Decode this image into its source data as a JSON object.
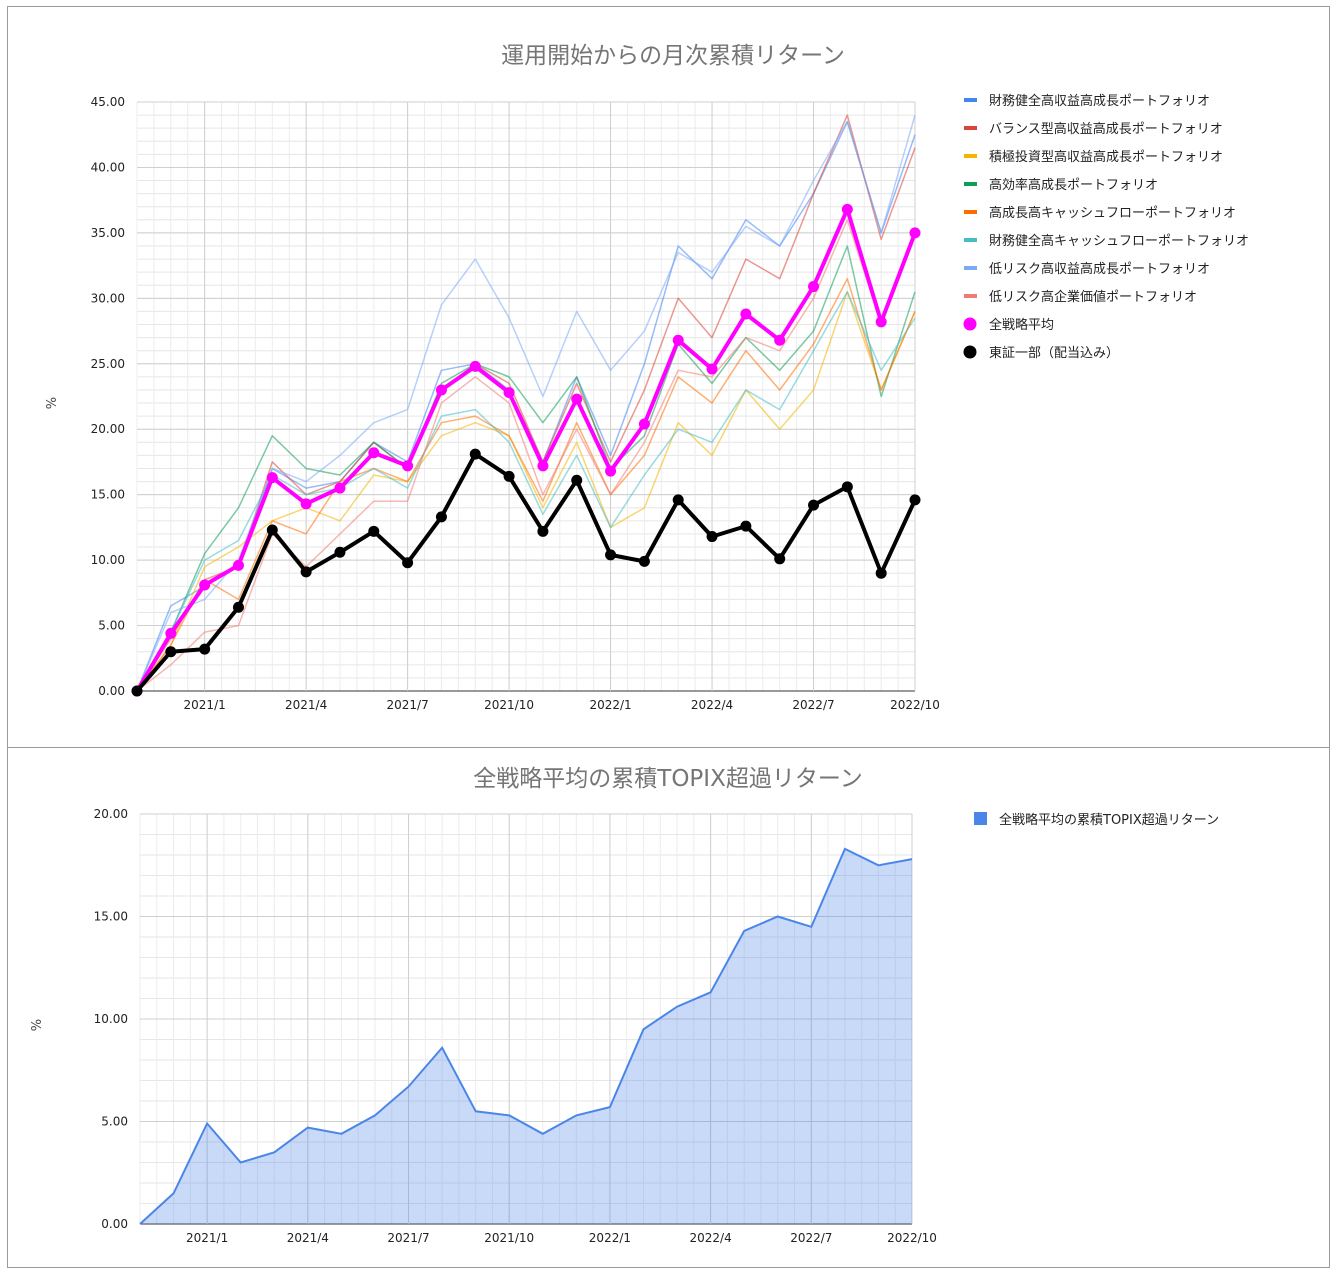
{
  "chart_data": [
    {
      "type": "line",
      "title": "運用開始からの月次累積リターン",
      "ylabel": "%",
      "ylim": [
        0,
        45
      ],
      "yticks": [
        "0.00",
        "5.00",
        "10.00",
        "15.00",
        "20.00",
        "25.00",
        "30.00",
        "35.00",
        "40.00",
        "45.00"
      ],
      "xtick_labels": [
        "2021/1",
        "2021/4",
        "2021/7",
        "2021/10",
        "2022/1",
        "2022/4",
        "2022/7",
        "2022/10"
      ],
      "x": [
        "2020/11",
        "2020/12",
        "2021/1",
        "2021/2",
        "2021/3",
        "2021/4",
        "2021/5",
        "2021/6",
        "2021/7",
        "2021/8",
        "2021/9",
        "2021/10",
        "2021/11",
        "2021/12",
        "2022/1",
        "2022/2",
        "2022/3",
        "2022/4",
        "2022/5",
        "2022/6",
        "2022/7",
        "2022/8",
        "2022/9",
        "2022/10"
      ],
      "grid": true,
      "legend_position": "right",
      "series": [
        {
          "name": "財務健全高収益高成長ポートフォリオ",
          "color": "#4285f4",
          "values": [
            0,
            6.5,
            8.0,
            9.5,
            17.0,
            15.5,
            16.0,
            19.0,
            17.5,
            24.5,
            25.0,
            23.0,
            17.5,
            24.0,
            18.0,
            25.0,
            34.0,
            31.5,
            36.0,
            34.0,
            38.0,
            43.5,
            35.0,
            42.5
          ]
        },
        {
          "name": "バランス型高収益高成長ポートフォリオ",
          "color": "#db4437",
          "values": [
            0,
            4.0,
            8.5,
            9.5,
            17.5,
            15.0,
            16.0,
            19.0,
            17.0,
            23.0,
            25.0,
            23.5,
            17.5,
            23.5,
            17.5,
            23.0,
            30.0,
            27.0,
            33.0,
            31.5,
            38.0,
            44.0,
            34.5,
            41.5
          ]
        },
        {
          "name": "積極投資型高収益高成長ポートフォリオ",
          "color": "#f4b400",
          "values": [
            0,
            3.5,
            9.5,
            11.0,
            13.0,
            14.0,
            13.0,
            16.5,
            16.0,
            19.5,
            20.5,
            19.5,
            14.0,
            19.0,
            12.5,
            14.0,
            20.5,
            18.0,
            23.0,
            20.0,
            23.0,
            30.5,
            23.0,
            29.0
          ]
        },
        {
          "name": "高効率高成長ポートフォリオ",
          "color": "#0f9d58",
          "values": [
            0,
            4.5,
            10.5,
            14.0,
            19.5,
            17.0,
            16.5,
            19.0,
            17.0,
            23.5,
            25.0,
            24.0,
            20.5,
            24.0,
            17.0,
            19.5,
            26.5,
            23.5,
            27.0,
            24.5,
            27.5,
            34.0,
            22.5,
            30.5
          ]
        },
        {
          "name": "高成長高キャッシュフローポートフォリオ",
          "color": "#ff6d01",
          "values": [
            0,
            3.5,
            8.5,
            7.0,
            13.0,
            12.0,
            16.0,
            17.0,
            16.0,
            20.5,
            21.0,
            19.5,
            14.5,
            20.5,
            15.0,
            18.0,
            24.0,
            22.0,
            26.0,
            23.0,
            26.5,
            31.5,
            23.0,
            29.0
          ]
        },
        {
          "name": "財務健全高キャッシュフローポートフォリオ",
          "color": "#46bdc6",
          "values": [
            0,
            4.5,
            10.0,
            11.5,
            16.5,
            15.0,
            15.5,
            17.0,
            15.5,
            21.0,
            21.5,
            19.0,
            13.5,
            18.0,
            12.5,
            16.5,
            20.0,
            19.0,
            23.0,
            21.5,
            26.0,
            30.5,
            24.5,
            28.5
          ]
        },
        {
          "name": "低リスク高収益高成長ポートフォリオ",
          "color": "#7baaf7",
          "values": [
            0,
            6.0,
            7.0,
            10.0,
            17.0,
            16.0,
            18.0,
            20.5,
            21.5,
            29.5,
            33.0,
            28.5,
            22.5,
            29.0,
            24.5,
            27.5,
            33.5,
            32.0,
            35.5,
            34.0,
            39.0,
            43.5,
            35.0,
            44.0
          ]
        },
        {
          "name": "低リスク高企業価値ポートフォリオ",
          "color": "#f07b72",
          "values": [
            0,
            2.0,
            4.5,
            5.0,
            12.0,
            9.5,
            12.0,
            14.5,
            14.5,
            22.0,
            24.0,
            22.0,
            15.0,
            20.0,
            15.0,
            19.0,
            24.5,
            24.0,
            27.0,
            26.0,
            30.0,
            36.0,
            28.0,
            35.0
          ]
        },
        {
          "name": "全戦略平均",
          "color": "#ff00ff",
          "values": [
            0,
            4.4,
            8.1,
            9.6,
            16.3,
            14.3,
            15.5,
            18.2,
            17.2,
            23.0,
            24.8,
            22.8,
            17.2,
            22.3,
            16.8,
            20.4,
            26.8,
            24.6,
            28.8,
            26.8,
            30.9,
            36.8,
            28.2,
            35.0
          ]
        },
        {
          "name": "東証一部（配当込み）",
          "color": "#000000",
          "values": [
            0,
            3.0,
            3.2,
            6.4,
            12.3,
            9.1,
            10.6,
            12.2,
            9.8,
            13.3,
            18.1,
            16.4,
            12.2,
            16.1,
            10.4,
            9.9,
            14.6,
            11.8,
            12.6,
            10.1,
            14.2,
            15.6,
            9.0,
            14.6
          ]
        }
      ]
    },
    {
      "type": "area",
      "title": "全戦略平均の累積TOPIX超過リターン",
      "ylabel": "%",
      "ylim": [
        0,
        20
      ],
      "yticks": [
        "0.00",
        "5.00",
        "10.00",
        "15.00",
        "20.00"
      ],
      "xtick_labels": [
        "2021/1",
        "2021/4",
        "2021/7",
        "2021/10",
        "2022/1",
        "2022/4",
        "2022/7",
        "2022/10"
      ],
      "x": [
        "2020/11",
        "2020/12",
        "2021/1",
        "2021/2",
        "2021/3",
        "2021/4",
        "2021/5",
        "2021/6",
        "2021/7",
        "2021/8",
        "2021/9",
        "2021/10",
        "2021/11",
        "2021/12",
        "2022/1",
        "2022/2",
        "2022/3",
        "2022/4",
        "2022/5",
        "2022/6",
        "2022/7",
        "2022/8",
        "2022/9",
        "2022/10"
      ],
      "grid": true,
      "legend_position": "right",
      "series": [
        {
          "name": "全戦略平均の累積TOPIX超過リターン",
          "color": "#4a86e8",
          "values": [
            0,
            1.5,
            4.9,
            3.0,
            3.5,
            4.7,
            4.4,
            5.3,
            6.7,
            8.6,
            5.5,
            5.3,
            4.4,
            5.3,
            5.7,
            9.5,
            10.6,
            11.3,
            14.3,
            15.0,
            14.5,
            18.3,
            17.5,
            17.8
          ]
        }
      ]
    }
  ]
}
